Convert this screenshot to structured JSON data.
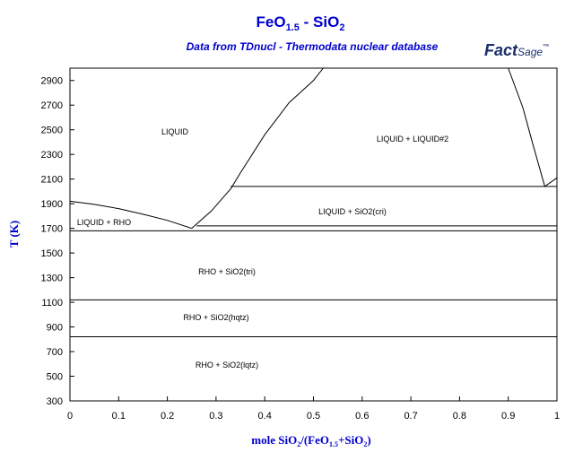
{
  "chart_data": {
    "type": "line",
    "title": [
      "FeO",
      "1.5",
      " - SiO",
      "2"
    ],
    "subtitle": "Data from TDnucl - Thermodata nuclear database",
    "logo": [
      "Fact",
      "Sage",
      "™"
    ],
    "y_label": "T (K)",
    "x_label": [
      "mole SiO",
      "2",
      "/(FeO",
      "1.5",
      "+SiO",
      "2",
      ")"
    ],
    "annotations": [
      "LIQUID",
      "LIQUID + LIQUID#2",
      "LIQUID + SiO2(cri)",
      "LIQUID + RHO",
      "RHO + SiO2(tri)",
      "RHO + SiO2(hqtz)",
      "RHO + SiO2(lqtz)"
    ],
    "xlim": [
      0,
      1
    ],
    "ylim": [
      300,
      3000
    ],
    "xticks": [
      0,
      0.1,
      0.2,
      0.3,
      0.4,
      0.5,
      0.6,
      0.7,
      0.8,
      0.9,
      1
    ],
    "yticks": [
      300,
      500,
      700,
      900,
      1100,
      1300,
      1500,
      1700,
      1900,
      2100,
      2300,
      2500,
      2700,
      2900
    ],
    "series": [
      {
        "color": "#000000",
        "x": [
          0,
          0.05,
          0.1,
          0.15,
          0.2,
          0.25
        ],
        "values": [
          1920,
          1895,
          1860,
          1815,
          1765,
          1700
        ]
      },
      {
        "color": "#000000",
        "x": [
          0.25,
          0.29,
          0.33,
          0.35,
          0.4,
          0.45,
          0.5,
          0.52
        ],
        "values": [
          1700,
          1840,
          2020,
          2150,
          2460,
          2720,
          2900,
          3000
        ]
      },
      {
        "color": "#000000",
        "x": [
          0.9,
          0.93,
          0.95,
          0.975,
          1
        ],
        "values": [
          3000,
          2680,
          2390,
          2040,
          2110
        ]
      },
      {
        "color": "#000000",
        "x": [
          0.33,
          1
        ],
        "values": [
          2040,
          2040
        ]
      },
      {
        "color": "#000000",
        "x": [
          0.26,
          1
        ],
        "values": [
          1720,
          1720
        ]
      },
      {
        "color": "#000000",
        "x": [
          0,
          1
        ],
        "values": [
          1680,
          1680
        ]
      },
      {
        "color": "#000000",
        "x": [
          0,
          1
        ],
        "values": [
          1120,
          1120
        ]
      },
      {
        "color": "#000000",
        "x": [
          0,
          1
        ],
        "values": [
          820,
          820
        ]
      }
    ]
  }
}
